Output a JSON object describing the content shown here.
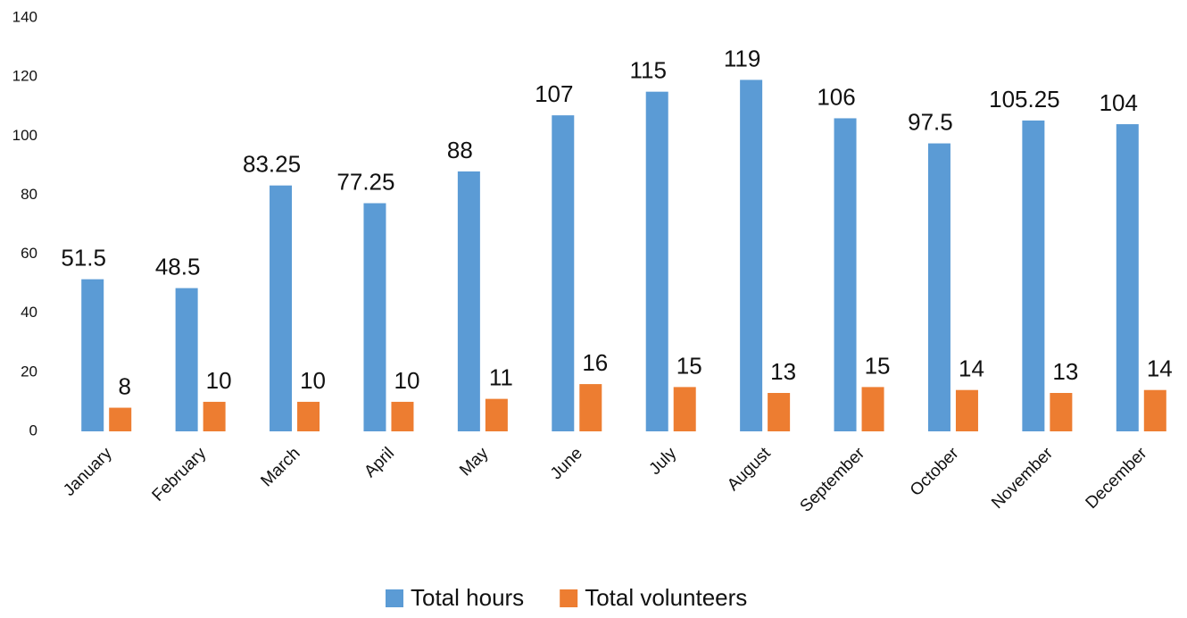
{
  "chart_data": {
    "type": "bar",
    "categories": [
      "January",
      "February",
      "March",
      "April",
      "May",
      "June",
      "July",
      "August",
      "September",
      "October",
      "November",
      "December"
    ],
    "series": [
      {
        "name": "Total hours",
        "color": "#5b9bd5",
        "values": [
          51.5,
          48.5,
          83.25,
          77.25,
          88,
          107,
          115,
          119,
          106,
          97.5,
          105.25,
          104
        ]
      },
      {
        "name": "Total volunteers",
        "color": "#ed7d31",
        "values": [
          8,
          10,
          10,
          10,
          11,
          16,
          15,
          13,
          15,
          14,
          13,
          14
        ]
      }
    ],
    "ylim": [
      0,
      140
    ],
    "yticks": [
      0,
      20,
      40,
      60,
      80,
      100,
      120,
      140
    ],
    "grid": false,
    "legend": "bottom"
  }
}
